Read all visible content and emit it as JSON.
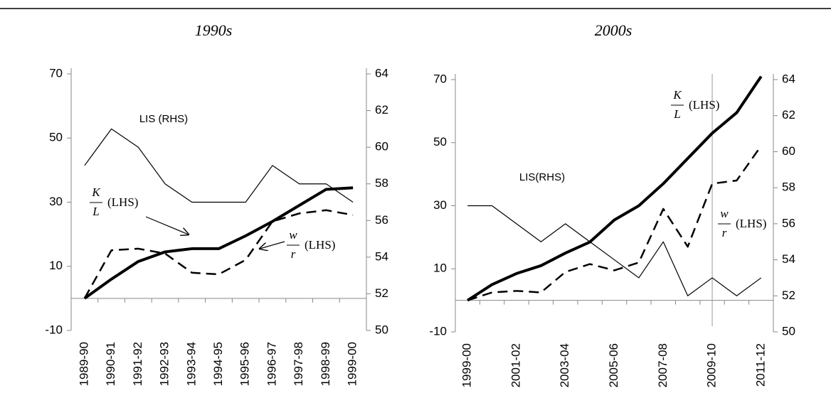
{
  "chart_data": [
    {
      "type": "line",
      "title": "1990s",
      "categories": [
        "1989-90",
        "1990-91",
        "1991-92",
        "1992-93",
        "1993-94",
        "1994-95",
        "1995-96",
        "1996-97",
        "1997-98",
        "1998-99",
        "1999-00"
      ],
      "ylim": [
        -10,
        70
      ],
      "yticks": [
        -10,
        10,
        30,
        50,
        70
      ],
      "y2lim": [
        50,
        64
      ],
      "y2ticks": [
        50,
        52,
        54,
        56,
        58,
        60,
        62,
        64
      ],
      "series": [
        {
          "name": "K/L",
          "color": "#000000",
          "line_width": 4,
          "line_style": "solid",
          "values": [
            0,
            6,
            11.5,
            14.5,
            15.5,
            15.5,
            19.5,
            24,
            29,
            34,
            34.5
          ]
        },
        {
          "name": "w/r",
          "color": "#000000",
          "line_width": 2.5,
          "line_style": "dashed",
          "values": [
            0,
            15,
            15.5,
            14,
            8,
            7.5,
            12,
            24,
            26.5,
            27.5,
            26
          ]
        },
        {
          "name": "LIS",
          "color": "#000000",
          "line_width": 1.2,
          "line_style": "solid",
          "axis": "y2",
          "values": [
            59,
            61,
            60,
            58,
            57,
            57,
            57,
            59,
            58,
            58,
            57
          ]
        }
      ],
      "annotations": [
        {
          "text": "LIS (RHS)"
        },
        {
          "numerator": "K",
          "denominator": "L",
          "text": "(LHS)"
        },
        {
          "numerator": "w",
          "denominator": "r",
          "text": "(LHS)"
        }
      ]
    },
    {
      "type": "line",
      "title": "2000s",
      "categories": [
        "1999-00",
        null,
        "2001-02",
        null,
        "2003-04",
        null,
        "2005-06",
        null,
        "2007-08",
        null,
        "2009-10",
        null,
        "2011-12"
      ],
      "ylim": [
        -10,
        70
      ],
      "yticks": [
        -10,
        10,
        30,
        50,
        70
      ],
      "y2lim": [
        50,
        64
      ],
      "y2ticks": [
        50,
        52,
        54,
        56,
        58,
        60,
        62,
        64
      ],
      "series": [
        {
          "name": "K/L",
          "color": "#000000",
          "line_width": 4,
          "line_style": "solid",
          "values": [
            0,
            5,
            8.5,
            11,
            15,
            18.5,
            25.5,
            30,
            37,
            45,
            53,
            59.5,
            71
          ]
        },
        {
          "name": "w/r",
          "color": "#000000",
          "line_width": 2.5,
          "line_style": "dashed",
          "values": [
            0,
            2.5,
            3,
            2.5,
            9,
            11.5,
            9.5,
            12,
            29,
            17,
            37,
            38,
            49
          ]
        },
        {
          "name": "LIS",
          "color": "#000000",
          "line_width": 1.2,
          "line_style": "solid",
          "axis": "y2",
          "values": [
            57,
            57,
            56,
            55,
            56,
            55,
            54,
            53,
            55,
            52,
            53,
            52,
            53
          ]
        }
      ],
      "annotations": [
        {
          "numerator": "K",
          "denominator": "L",
          "text": "(LHS)"
        },
        {
          "text": "LIS(RHS)"
        },
        {
          "numerator": "w",
          "denominator": "r",
          "text": "(LHS)"
        }
      ]
    }
  ]
}
